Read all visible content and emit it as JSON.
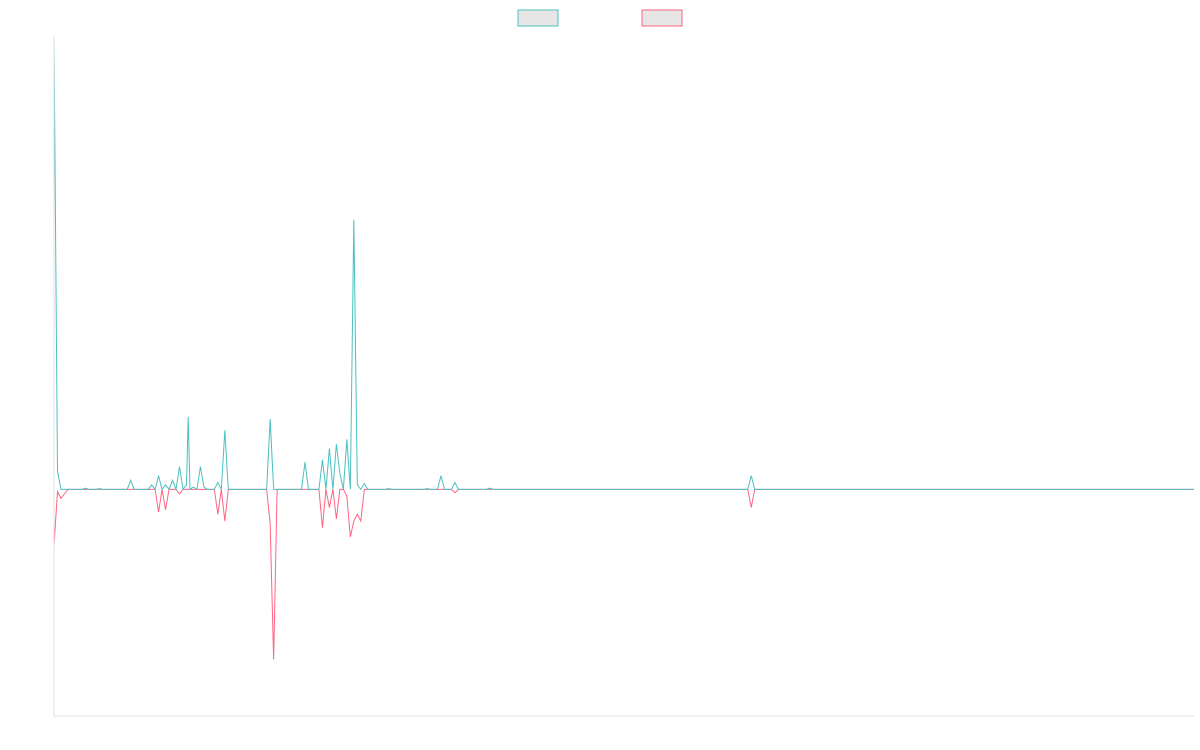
{
  "chart_data": {
    "type": "line",
    "title": "",
    "xlabel": "",
    "ylabel": "",
    "grid": false,
    "legend": "top-center",
    "ylim": [
      -100,
      200
    ],
    "colors": {
      "series_a": "#4bc0c0",
      "series_a_fill": "#e6e6e6",
      "series_b": "#ff6384",
      "series_b_fill": "#e6e6e6",
      "axis": "#e0e0e0"
    },
    "x_count": 328,
    "series": [
      {
        "key": "positive",
        "points": [
          [
            0,
            200
          ],
          [
            1,
            8
          ],
          [
            3,
            0
          ],
          [
            9,
            0.5
          ],
          [
            13,
            0.3
          ],
          [
            22,
            4
          ],
          [
            28,
            2
          ],
          [
            30,
            6
          ],
          [
            32,
            2
          ],
          [
            34,
            4
          ],
          [
            36,
            10
          ],
          [
            38,
            2
          ],
          [
            38.5,
            32
          ],
          [
            40,
            1
          ],
          [
            42,
            10
          ],
          [
            43,
            1
          ],
          [
            47,
            3
          ],
          [
            49,
            26
          ],
          [
            51,
            0
          ],
          [
            61,
            0
          ],
          [
            62,
            31
          ],
          [
            64,
            0
          ],
          [
            72,
            12
          ],
          [
            73,
            0
          ],
          [
            77,
            13
          ],
          [
            79,
            18
          ],
          [
            81,
            20
          ],
          [
            82,
            7
          ],
          [
            84,
            22
          ],
          [
            86,
            119
          ],
          [
            87,
            2
          ],
          [
            89,
            2.5
          ],
          [
            96,
            0.3
          ],
          [
            107,
            0.3
          ],
          [
            111,
            6
          ],
          [
            115,
            3
          ],
          [
            125,
            0.5
          ],
          [
            200,
            6
          ]
        ]
      },
      {
        "key": "negative",
        "points": [
          [
            0,
            -25
          ],
          [
            1,
            -1
          ],
          [
            2,
            -4
          ],
          [
            3,
            -2
          ],
          [
            30,
            -10
          ],
          [
            32,
            -9
          ],
          [
            36,
            -2
          ],
          [
            47,
            -11
          ],
          [
            49,
            -14
          ],
          [
            62,
            -15
          ],
          [
            63,
            -75
          ],
          [
            77,
            -17
          ],
          [
            79,
            -8
          ],
          [
            81,
            -13
          ],
          [
            84,
            -3
          ],
          [
            85,
            -21
          ],
          [
            86,
            -14
          ],
          [
            87,
            -11
          ],
          [
            88,
            -14
          ],
          [
            115,
            -1.5
          ],
          [
            200,
            -8
          ]
        ]
      }
    ]
  }
}
